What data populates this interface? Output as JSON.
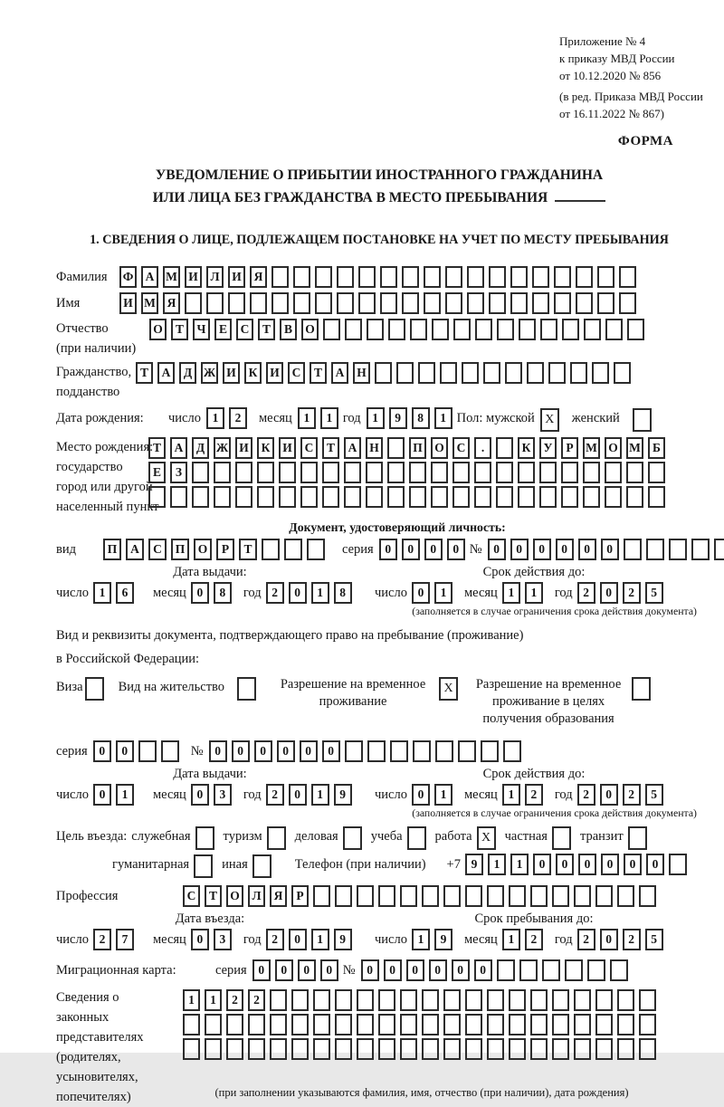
{
  "appendix": {
    "line1": "Приложение № 4",
    "line2": "к приказу МВД России",
    "line3": "от 10.12.2020 № 856",
    "line4": "(в ред. Приказа МВД России",
    "line5": "от 16.11.2022 № 867)",
    "form_label": "ФОРМА"
  },
  "title": {
    "line1": "УВЕДОМЛЕНИЕ О ПРИБЫТИИ ИНОСТРАННОГО ГРАЖДАНИНА",
    "line2": "ИЛИ ЛИЦА БЕЗ ГРАЖДАНСТВА В МЕСТО ПРЕБЫВАНИЯ"
  },
  "section1": {
    "heading": "1. СВЕДЕНИЯ О ЛИЦЕ, ПОДЛЕЖАЩЕМ ПОСТАНОВКЕ НА УЧЕТ ПО МЕСТУ ПРЕБЫВАНИЯ",
    "surname": {
      "label": "Фамилия",
      "value": "ФАМИЛИЯ"
    },
    "name": {
      "label": "Имя",
      "value": "ИМЯ"
    },
    "patronymic": {
      "label1": "Отчество",
      "label2": "(при наличии)",
      "value": "ОТЧЕСТВО"
    },
    "citizenship": {
      "label1": "Гражданство,",
      "label2": "подданство",
      "value": "ТАДЖИКИСТАН"
    },
    "birth_date": {
      "label": "Дата рождения:",
      "day_label": "число",
      "day": "12",
      "month_label": "месяц",
      "month": "11",
      "year_label": "год",
      "year": "1981",
      "sex_label": "Пол: мужской",
      "male_checked": "X",
      "female_label": "женский",
      "female_checked": ""
    },
    "birth_place": {
      "label1": "Место рождения:",
      "label2": "государство",
      "label3": "город или другой",
      "label4": "населенный пункт",
      "row1": "ТАДЖИКИСТАН ПОС. КУРМОМБ",
      "row2": "ЕЗ",
      "row3": ""
    }
  },
  "identity_doc": {
    "heading": "Документ, удостоверяющий личность:",
    "kind_label": "вид",
    "kind": "ПАСПОРТ",
    "series_label": "серия",
    "series": "0000",
    "number_label": "№",
    "number": "000000",
    "issue_title": "Дата выдачи:",
    "issue": {
      "day_label": "число",
      "day": "16",
      "month_label": "месяц",
      "month": "08",
      "year_label": "год",
      "year": "2018"
    },
    "valid_title": "Срок действия до:",
    "valid": {
      "day_label": "число",
      "day": "01",
      "month_label": "месяц",
      "month": "11",
      "year_label": "год",
      "year": "2025"
    },
    "valid_note": "(заполняется в случае ограничения срока действия документа)"
  },
  "residence_doc": {
    "intro1": "Вид и реквизиты документа, подтверждающего право на пребывание (проживание)",
    "intro2": "в Российской Федерации:",
    "options": [
      {
        "label": "Виза",
        "checked": ""
      },
      {
        "label": "Вид на жительство",
        "checked": ""
      },
      {
        "label": "Разрешение на временное проживание",
        "checked": "X"
      },
      {
        "label": "Разрешение на временное проживание в целях получения образования",
        "checked": ""
      }
    ],
    "series_label": "серия",
    "series": "00",
    "number_label": "№",
    "number": "000000",
    "issue_title": "Дата выдачи:",
    "issue": {
      "day_label": "число",
      "day": "01",
      "month_label": "месяц",
      "month": "03",
      "year_label": "год",
      "year": "2019"
    },
    "valid_title": "Срок действия до:",
    "valid": {
      "day_label": "число",
      "day": "01",
      "month_label": "месяц",
      "month": "12",
      "year_label": "год",
      "year": "2025"
    },
    "valid_note": "(заполняется в случае ограничения срока действия документа)"
  },
  "entry_purpose": {
    "label": "Цель въезда:",
    "options_row1": [
      {
        "label": "служебная",
        "checked": ""
      },
      {
        "label": "туризм",
        "checked": ""
      },
      {
        "label": "деловая",
        "checked": ""
      },
      {
        "label": "учеба",
        "checked": ""
      },
      {
        "label": "работа",
        "checked": "X"
      },
      {
        "label": "частная",
        "checked": ""
      },
      {
        "label": "транзит",
        "checked": ""
      }
    ],
    "options_row2": [
      {
        "label": "гуманитарная",
        "checked": ""
      },
      {
        "label": "иная",
        "checked": ""
      }
    ],
    "phone_label": "Телефон (при наличии)",
    "phone_prefix": "+7",
    "phone": "911000000"
  },
  "profession": {
    "label": "Профессия",
    "value": "СТОЛЯР"
  },
  "entry_dates": {
    "entry_title": "Дата въезда:",
    "entry": {
      "day_label": "число",
      "day": "27",
      "month_label": "месяц",
      "month": "03",
      "year_label": "год",
      "year": "2019"
    },
    "stay_title": "Срок пребывания до:",
    "stay": {
      "day_label": "число",
      "day": "19",
      "month_label": "месяц",
      "month": "12",
      "year_label": "год",
      "year": "2025"
    }
  },
  "migration_card": {
    "label": "Миграционная карта:",
    "series_label": "серия",
    "series": "0000",
    "number_label": "№",
    "number": "000000"
  },
  "representatives": {
    "label1": "Сведения о",
    "label2": "законных",
    "label3": "представителях",
    "label4": "(родителях,",
    "label5": "усыновителях,",
    "label6": "попечителях)",
    "row1": "1122",
    "row2": "",
    "row3": "",
    "note": "(при заполнении указываются фамилия, имя, отчество (при наличии), дата рождения)"
  }
}
